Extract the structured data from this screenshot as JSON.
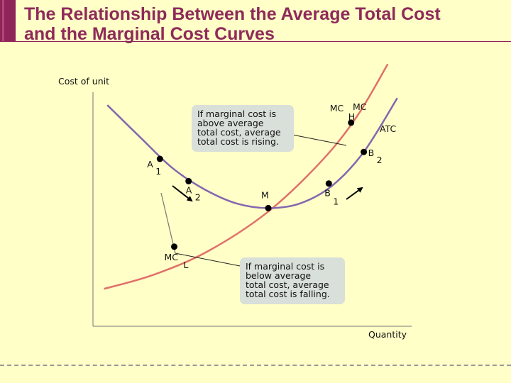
{
  "title": {
    "line1": "The Relationship Between the Average Total Cost",
    "line2": "and the Marginal Cost Curves"
  },
  "colors": {
    "title": "#8e2a5a",
    "background": "#ffffc7",
    "mc_curve": "#e0706a",
    "atc_curve": "#8466b0",
    "callout_bg": "#d9dfd9"
  },
  "callouts": {
    "rising": [
      "If marginal cost is",
      "above average",
      "total cost, average",
      "total cost is rising."
    ],
    "falling": [
      "If marginal cost is",
      "below average",
      "total cost, average",
      "total cost is falling."
    ]
  },
  "chart_data": {
    "type": "line",
    "title": "",
    "xlabel": "Quantity",
    "ylabel": "Cost of unit",
    "xlim": [
      0,
      10
    ],
    "ylim": [
      0,
      10
    ],
    "grid": false,
    "series": [
      {
        "name": "MC",
        "x": [
          0.35,
          1.9,
          3.6,
          5.5,
          7.2,
          8.3,
          9.25
        ],
        "y": [
          1.6,
          2.2,
          3.2,
          4.9,
          7.1,
          9.0,
          11.2
        ]
      },
      {
        "name": "ATC",
        "x": [
          0.45,
          1.5,
          2.5,
          3.5,
          4.5,
          5.5,
          6.5,
          7.5,
          8.5,
          9.55
        ],
        "y": [
          9.45,
          8.05,
          6.75,
          5.85,
          5.25,
          5.05,
          5.25,
          6.0,
          7.45,
          9.75
        ]
      }
    ],
    "points": [
      {
        "label": "A",
        "sub": "1",
        "x": 2.1,
        "y": 7.15
      },
      {
        "label": "A",
        "sub": "2",
        "x": 3.0,
        "y": 6.2
      },
      {
        "label": "M",
        "sub": "",
        "x": 5.5,
        "y": 5.05
      },
      {
        "label": "B",
        "sub": "1",
        "x": 7.4,
        "y": 6.1
      },
      {
        "label": "B",
        "sub": "2",
        "x": 8.5,
        "y": 7.45
      },
      {
        "label": "MC",
        "sub": "H",
        "x": 8.1,
        "y": 8.7
      },
      {
        "label": "MC",
        "sub": "L",
        "x": 2.55,
        "y": 3.4
      }
    ],
    "curve_labels": {
      "mc": "MC",
      "atc": "ATC"
    }
  }
}
